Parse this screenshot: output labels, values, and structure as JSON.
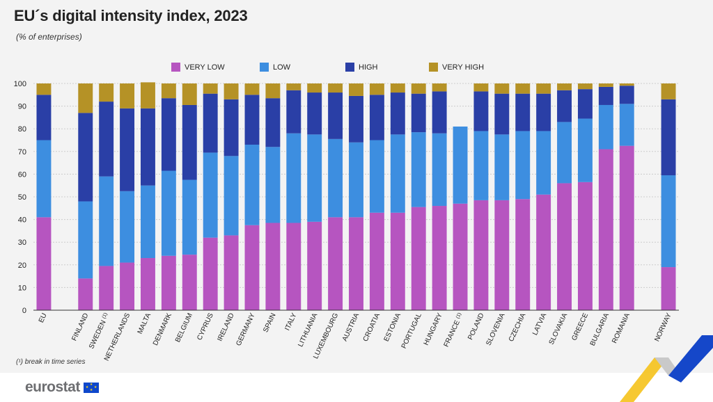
{
  "title": "EU´s digital intensity index, 2023",
  "subtitle": "(% of enterprises)",
  "footnote": "(¹) break in time series",
  "logo_text": "eurostat",
  "colors": {
    "very_low": "#b655c0",
    "low": "#3d8ee0",
    "high": "#2a3fa6",
    "very_high": "#b59226",
    "grid": "#cccccc",
    "axis": "#333333",
    "background": "#f3f3f3"
  },
  "chart_data": {
    "type": "bar",
    "stacked": true,
    "ylim": [
      0,
      100
    ],
    "yticks": [
      0,
      10,
      20,
      30,
      40,
      50,
      60,
      70,
      80,
      90,
      100
    ],
    "grid": true,
    "legend_position": "top",
    "categories": [
      "EU",
      "FINLAND",
      "SWEDEN (1)",
      "NETHERLANDS",
      "MALTA",
      "DENMARK",
      "BELGIUM",
      "CYPRUS",
      "IRELAND",
      "GERMANY",
      "SPAIN",
      "ITALY",
      "LITHUANIA",
      "LUXEMBOURG",
      "AUSTRIA",
      "CROATIA",
      "ESTONIA",
      "PORTUGAL",
      "HUNGARY",
      "FRANCE (1)",
      "POLAND",
      "SLOVENIA",
      "CZECHIA",
      "LATVIA",
      "SLOVAKIA",
      "GREECE",
      "BULGARIA",
      "ROMANIA",
      "NORWAY"
    ],
    "gap_after": [
      "EU",
      "ROMANIA"
    ],
    "series": [
      {
        "name": "VERY LOW",
        "color_key": "very_low",
        "values": [
          41,
          14,
          19.5,
          21,
          23,
          24,
          24.5,
          32,
          33,
          37.5,
          38.5,
          38.5,
          39,
          41,
          41,
          43,
          43,
          45.5,
          46,
          47,
          48.5,
          48.5,
          49,
          51,
          56,
          56.5,
          71,
          72.5,
          19
        ]
      },
      {
        "name": "LOW",
        "color_key": "low",
        "values": [
          34,
          34,
          39.5,
          31.5,
          32,
          37.5,
          33,
          37.5,
          35,
          35.5,
          33.5,
          39.5,
          38.5,
          34.5,
          33,
          32,
          34.5,
          33,
          32,
          34,
          30.5,
          29,
          30,
          28,
          27,
          28,
          19.5,
          18.5,
          40.5
        ]
      },
      {
        "name": "HIGH",
        "color_key": "high",
        "values": [
          20,
          39,
          33,
          36.5,
          34,
          32,
          33,
          26,
          25,
          22,
          21.5,
          19,
          18.5,
          20.5,
          20.5,
          20,
          18.5,
          17,
          18.5,
          0,
          17.5,
          18,
          16.5,
          16.5,
          14,
          13,
          8,
          8,
          33.5
        ]
      },
      {
        "name": "VERY HIGH",
        "color_key": "very_high",
        "values": [
          5,
          13,
          8,
          11,
          11.5,
          6.5,
          9.5,
          4.5,
          7,
          5,
          6.5,
          3,
          4,
          4,
          5.5,
          5,
          4,
          4.5,
          3.5,
          0,
          3.5,
          4.5,
          4.5,
          4.5,
          3,
          2.5,
          1.5,
          1,
          7
        ]
      }
    ]
  }
}
